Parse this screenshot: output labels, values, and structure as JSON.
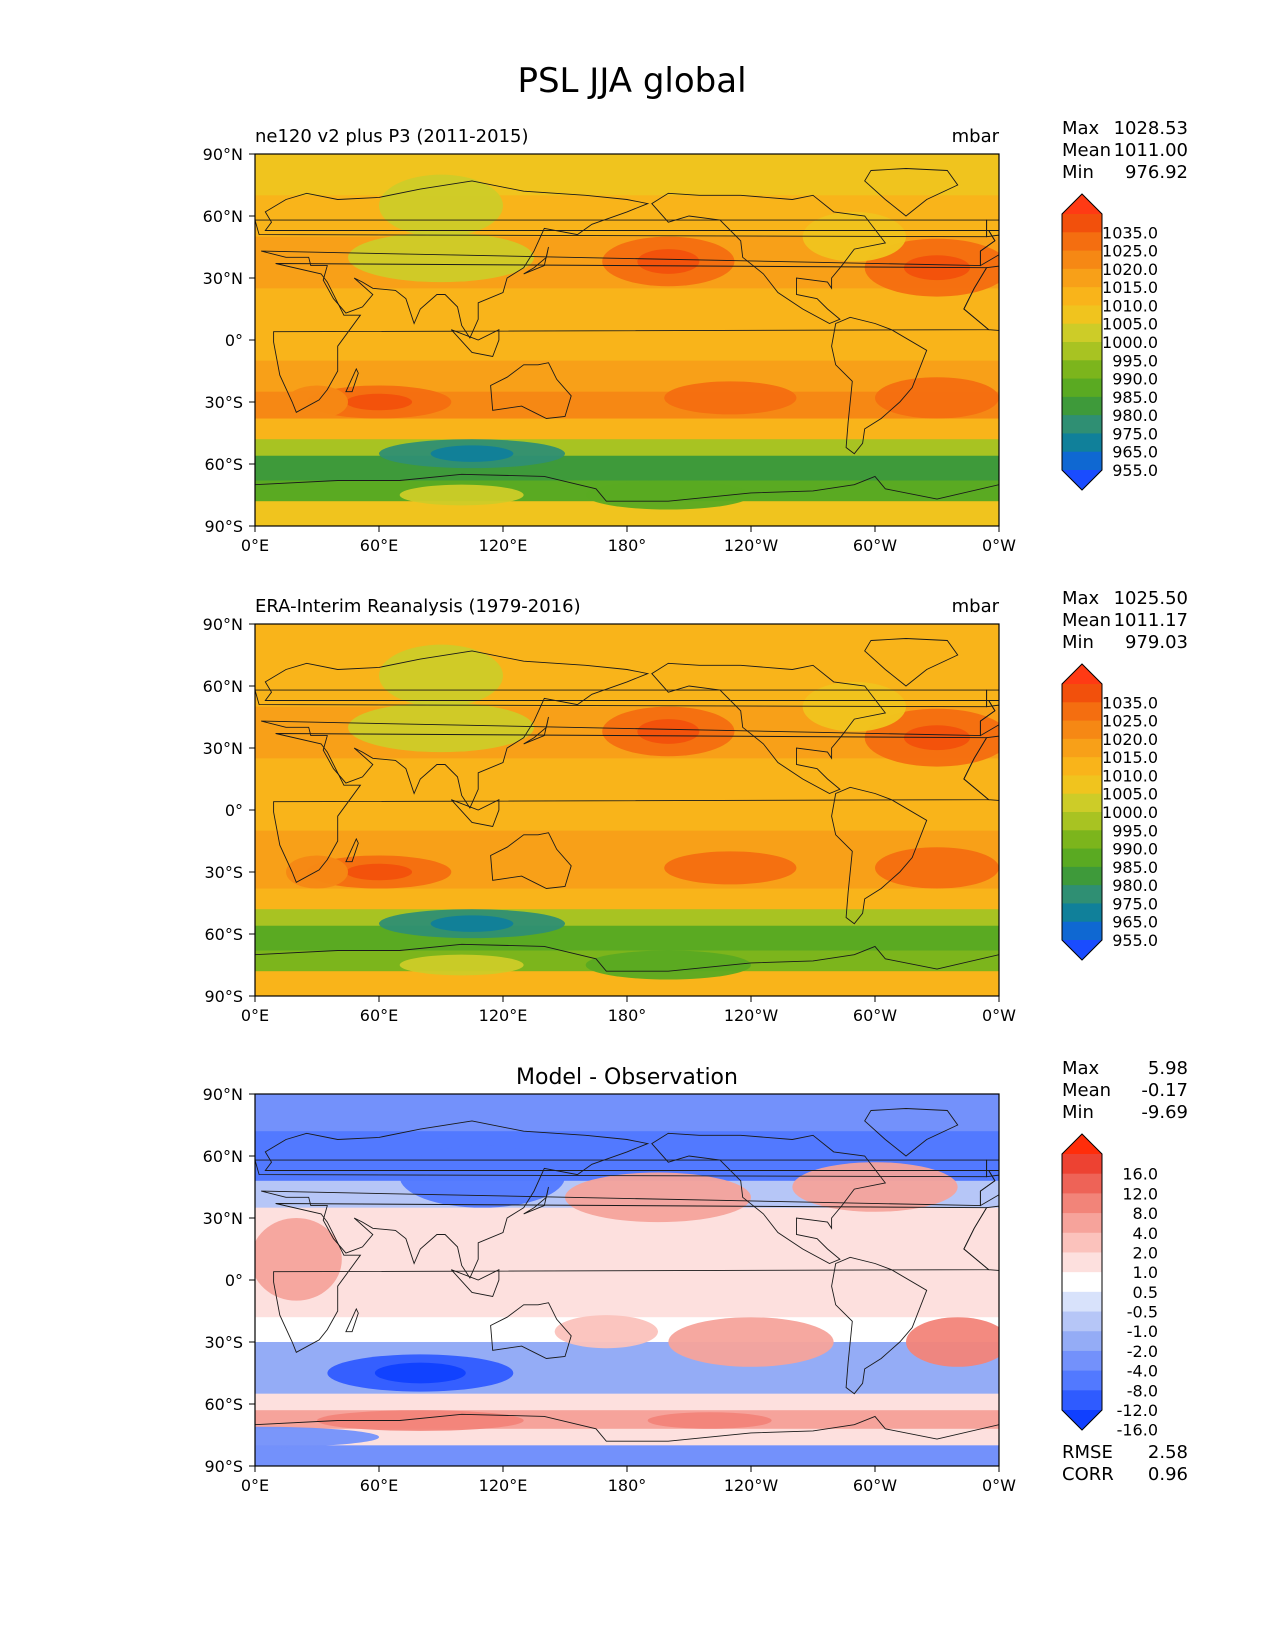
{
  "title": "PSL JJA global",
  "lat_ticks": [
    "90°N",
    "60°N",
    "30°N",
    "0°",
    "30°S",
    "60°S",
    "90°S"
  ],
  "lon_ticks": [
    "0°E",
    "60°E",
    "120°E",
    "180°",
    "120°W",
    "60°W",
    "0°W"
  ],
  "stats_labels": {
    "max": "Max",
    "mean": "Mean",
    "min": "Min",
    "rmse": "RMSE",
    "corr": "CORR"
  },
  "colors": {
    "abs_levels": [
      "#1a4cff",
      "#0f68d2",
      "#10809a",
      "#2f8f73",
      "#3e9a3a",
      "#5aaa22",
      "#7cb51c",
      "#a8c322",
      "#cdcc28",
      "#f0c41e",
      "#f9b41a",
      "#f8a018",
      "#f68814",
      "#f46e10",
      "#f2500c",
      "#ff3a14"
    ],
    "diff_levels": [
      "#1040ff",
      "#2f5bff",
      "#5279ff",
      "#7391fb",
      "#94acf6",
      "#b6c6f7",
      "#d8e2fb",
      "#ffffff",
      "#fde0de",
      "#fbc2bc",
      "#f6a39b",
      "#f28479",
      "#ee6357",
      "#ed4232",
      "#ff2d0a"
    ]
  },
  "chart_data": [
    {
      "type": "heatmap",
      "panel": "model",
      "title": "ne120 v2 plus P3 (2011-2015)",
      "units": "mbar",
      "stats": {
        "max": "1028.53",
        "mean": "1011.00",
        "min": "976.92"
      },
      "colorbar_labels": [
        "1035.0",
        "1025.0",
        "1020.0",
        "1015.0",
        "1010.0",
        "1005.0",
        "1000.0",
        "995.0",
        "990.0",
        "985.0",
        "980.0",
        "975.0",
        "965.0",
        "955.0"
      ],
      "xlim": [
        0,
        360
      ],
      "ylim": [
        -90,
        90
      ]
    },
    {
      "type": "heatmap",
      "panel": "obs",
      "title": "ERA-Interim Reanalysis (1979-2016)",
      "units": "mbar",
      "stats": {
        "max": "1025.50",
        "mean": "1011.17",
        "min": "979.03"
      },
      "colorbar_labels": [
        "1035.0",
        "1025.0",
        "1020.0",
        "1015.0",
        "1010.0",
        "1005.0",
        "1000.0",
        "995.0",
        "990.0",
        "985.0",
        "980.0",
        "975.0",
        "965.0",
        "955.0"
      ],
      "xlim": [
        0,
        360
      ],
      "ylim": [
        -90,
        90
      ]
    },
    {
      "type": "heatmap",
      "panel": "diff",
      "title": "Model - Observation",
      "units": "",
      "stats": {
        "max": "5.98",
        "mean": "-0.17",
        "min": "-9.69"
      },
      "rmse": "2.58",
      "corr": "0.96",
      "colorbar_labels": [
        "16.0",
        "12.0",
        "8.0",
        "4.0",
        "2.0",
        "1.0",
        "0.5",
        "-0.5",
        "-1.0",
        "-2.0",
        "-4.0",
        "-8.0",
        "-12.0",
        "-16.0"
      ],
      "xlim": [
        0,
        360
      ],
      "ylim": [
        -90,
        90
      ]
    }
  ]
}
